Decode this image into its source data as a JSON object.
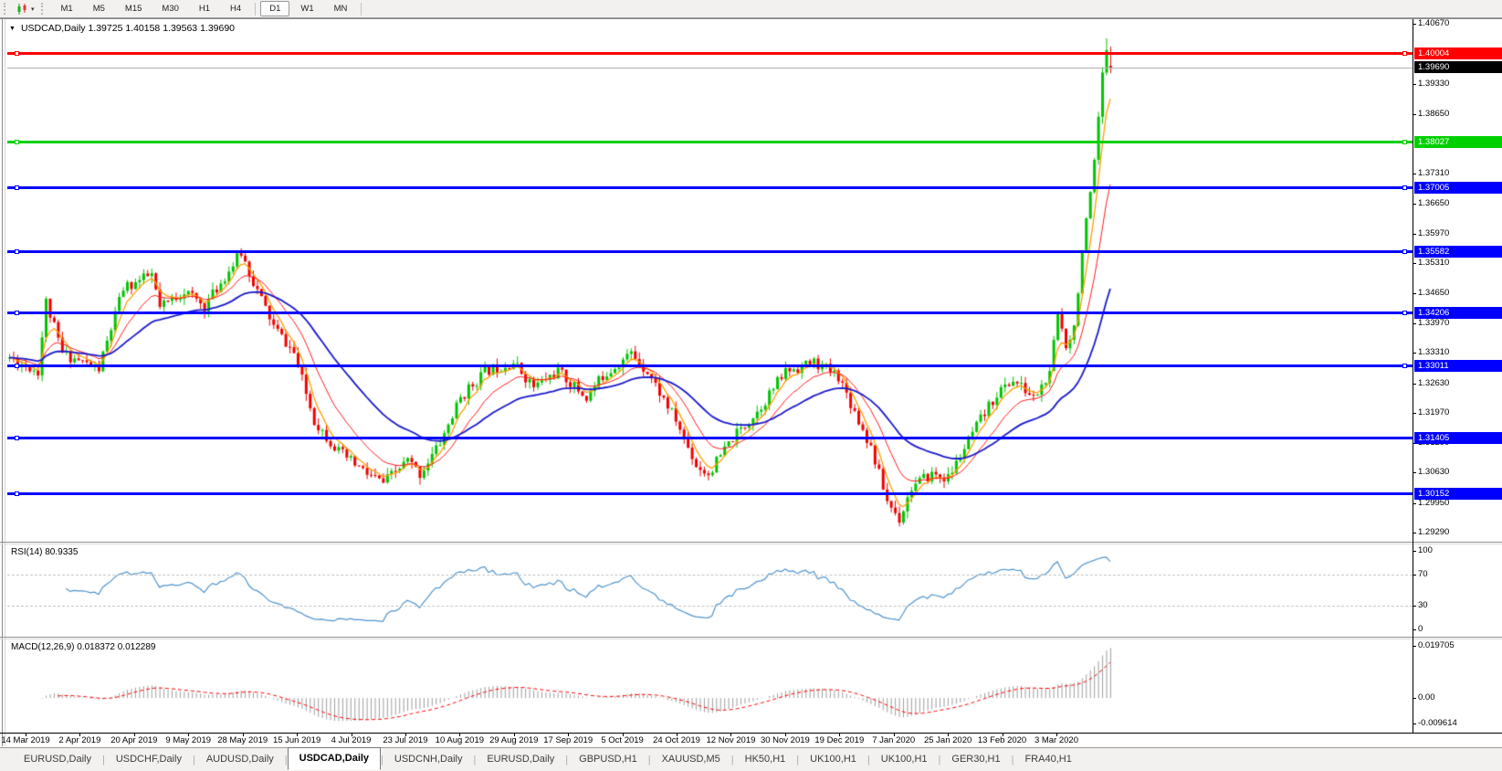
{
  "icons": {
    "caret_down": "▾",
    "title_marker": "▼"
  },
  "toolbar": {
    "timeframes": [
      "M1",
      "M5",
      "M15",
      "M30",
      "H1",
      "H4",
      "D1",
      "W1",
      "MN"
    ],
    "active_timeframe": "D1",
    "separators_after": [
      "H4",
      "MN"
    ]
  },
  "chart": {
    "title_full": "USDCAD,Daily  1.39725 1.40158 1.39563 1.39690",
    "symbol": "USDCAD",
    "period": "Daily"
  },
  "price_axis": {
    "ticks": [
      "1.40670",
      "1.39330",
      "1.38650",
      "1.37310",
      "1.36650",
      "1.35970",
      "1.35310",
      "1.34650",
      "1.33970",
      "1.33310",
      "1.32630",
      "1.31970",
      "1.31290",
      "1.30630",
      "1.29950",
      "1.29290"
    ],
    "current_price": {
      "value": "1.39690",
      "bg": "#000000",
      "fg": "#ffffff"
    }
  },
  "horizontal_lines": [
    {
      "price": "1.40004",
      "color": "#ff0000",
      "right_anchor": true
    },
    {
      "price": "1.38027",
      "color": "#00d000",
      "right_anchor": true
    },
    {
      "price": "1.37005",
      "color": "#0000ff",
      "right_anchor": true
    },
    {
      "price": "1.35582",
      "color": "#0000ff",
      "right_anchor": true
    },
    {
      "price": "1.34206",
      "color": "#0000ff",
      "right_anchor": true
    },
    {
      "price": "1.33011",
      "color": "#0000ff",
      "right_anchor": true
    },
    {
      "price": "1.31405",
      "color": "#0000ff",
      "right_anchor": false
    },
    {
      "price": "1.30152",
      "color": "#0000ff",
      "right_anchor": false
    }
  ],
  "rsi": {
    "label": "RSI(14) 80.9335",
    "levels": [
      "100",
      "70",
      "30",
      "0"
    ],
    "dashed_levels": [
      70,
      30
    ],
    "current": 80.9335
  },
  "macd": {
    "label": "MACD(12,26,9) 0.018372 0.012289",
    "scale": [
      "0.019705",
      "0.00",
      "-0.009614"
    ]
  },
  "date_axis": [
    "14 Mar 2019",
    "2 Apr 2019",
    "20 Apr 2019",
    "9 May 2019",
    "28 May 2019",
    "15 Jun 2019",
    "4 Jul 2019",
    "23 Jul 2019",
    "10 Aug 2019",
    "29 Aug 2019",
    "17 Sep 2019",
    "5 Oct 2019",
    "24 Oct 2019",
    "12 Nov 2019",
    "30 Nov 2019",
    "19 Dec 2019",
    "7 Jan 2020",
    "25 Jan 2020",
    "13 Feb 2020",
    "3 Mar 2020"
  ],
  "tabs": {
    "separator": "|",
    "items": [
      {
        "label": "EURUSD,Daily",
        "active": false
      },
      {
        "label": "USDCHF,Daily",
        "active": false
      },
      {
        "label": "AUDUSD,Daily",
        "active": false
      },
      {
        "label": "USDCAD,Daily",
        "active": true
      },
      {
        "label": "USDCNH,Daily",
        "active": false
      },
      {
        "label": "EURUSD,Daily",
        "active": false
      },
      {
        "label": "GBPUSD,H1",
        "active": false
      },
      {
        "label": "XAUUSD,M5",
        "active": false
      },
      {
        "label": "HK50,H1",
        "active": false
      },
      {
        "label": "UK100,H1",
        "active": false
      },
      {
        "label": "UK100,H1",
        "active": false
      },
      {
        "label": "GER30,H1",
        "active": false
      },
      {
        "label": "FRA40,H1",
        "active": false
      }
    ]
  },
  "chart_data": {
    "type": "candlestick",
    "symbol": "USDCAD",
    "timeframe": "Daily",
    "seed": 11,
    "num_candles": 272,
    "price_range": [
      1.2929,
      1.4067
    ],
    "last_candle": {
      "open": 1.39725,
      "high": 1.40158,
      "low": 1.39563,
      "close": 1.3969
    },
    "spike_high": 1.4035,
    "price_path_anchors": [
      [
        0,
        1.332
      ],
      [
        7,
        1.329
      ],
      [
        9,
        1.3445
      ],
      [
        13,
        1.333
      ],
      [
        22,
        1.3295
      ],
      [
        28,
        1.3475
      ],
      [
        35,
        1.3505
      ],
      [
        37,
        1.343
      ],
      [
        43,
        1.347
      ],
      [
        48,
        1.3435
      ],
      [
        57,
        1.3555
      ],
      [
        60,
        1.349
      ],
      [
        65,
        1.339
      ],
      [
        70,
        1.333
      ],
      [
        75,
        1.318
      ],
      [
        81,
        1.311
      ],
      [
        88,
        1.306
      ],
      [
        92,
        1.304
      ],
      [
        98,
        1.309
      ],
      [
        101,
        1.306
      ],
      [
        106,
        1.313
      ],
      [
        111,
        1.323
      ],
      [
        117,
        1.329
      ],
      [
        124,
        1.331
      ],
      [
        129,
        1.3255
      ],
      [
        135,
        1.329
      ],
      [
        142,
        1.323
      ],
      [
        146,
        1.328
      ],
      [
        153,
        1.333
      ],
      [
        157,
        1.329
      ],
      [
        164,
        1.318
      ],
      [
        169,
        1.308
      ],
      [
        172,
        1.306
      ],
      [
        178,
        1.314
      ],
      [
        184,
        1.32
      ],
      [
        191,
        1.329
      ],
      [
        198,
        1.331
      ],
      [
        204,
        1.328
      ],
      [
        209,
        1.318
      ],
      [
        212,
        1.312
      ],
      [
        216,
        1.3
      ],
      [
        219,
        1.296
      ],
      [
        222,
        1.303
      ],
      [
        227,
        1.306
      ],
      [
        231,
        1.305
      ],
      [
        237,
        1.315
      ],
      [
        243,
        1.324
      ],
      [
        247,
        1.327
      ],
      [
        252,
        1.323
      ],
      [
        256,
        1.328
      ],
      [
        258,
        1.342
      ],
      [
        260,
        1.335
      ],
      [
        262,
        1.339
      ],
      [
        264,
        1.356
      ],
      [
        266,
        1.368
      ],
      [
        267,
        1.375
      ],
      [
        268,
        1.385
      ],
      [
        269,
        1.395
      ],
      [
        270,
        1.4
      ],
      [
        271,
        1.3969
      ]
    ],
    "colors": {
      "up": "#00c300",
      "down": "#f00000",
      "ma_fast": "#ff9d00",
      "ma_mid": "#ff1a1a",
      "ma_slow": "#1a1acc",
      "rsi": "#4f94cd",
      "macd_hist": "#9e9e9e",
      "macd_signal": "#ff0000"
    },
    "moving_averages": [
      {
        "period": 5,
        "color": "#ff9d00"
      },
      {
        "period": 13,
        "color": "#ff1a1a"
      },
      {
        "period": 34,
        "color": "#1a1acc"
      }
    ],
    "indicators": {
      "rsi_period": 14,
      "rsi_current": 80.9335,
      "macd_params": [
        12,
        26,
        9
      ],
      "macd_main": 0.018372,
      "macd_signal": 0.012289,
      "macd_range": [
        -0.009614,
        0.019705
      ]
    }
  }
}
